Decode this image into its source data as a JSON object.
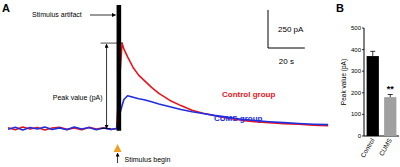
{
  "chart_data": [
    {
      "type": "line",
      "title": "A",
      "tick_labels": false,
      "x": [
        0,
        4,
        8,
        12,
        16,
        20,
        24,
        28,
        32,
        36,
        40,
        44,
        48,
        52,
        56,
        59,
        60,
        62,
        63,
        65,
        68,
        71,
        74,
        78,
        82,
        88,
        94,
        100,
        106,
        112,
        118,
        126,
        134,
        142,
        150,
        158,
        166,
        174
      ],
      "xlim": [
        0,
        175
      ],
      "ylim": [
        -220,
        810
      ],
      "series": [
        {
          "name": "Control group",
          "color": "#e8141b",
          "values": [
            5,
            -8,
            10,
            -4,
            6,
            -10,
            3,
            8,
            -6,
            4,
            -9,
            7,
            -3,
            5,
            -7,
            0,
            200,
            560,
            520,
            470,
            400,
            350,
            315,
            270,
            230,
            184,
            150,
            120,
            100,
            85,
            70,
            55,
            45,
            38,
            32,
            28,
            22,
            18
          ]
        },
        {
          "name": "CUMS group",
          "color": "#1f2ee0",
          "values": [
            -5,
            8,
            -10,
            6,
            -3,
            9,
            -7,
            4,
            -8,
            10,
            -4,
            6,
            -9,
            3,
            -6,
            0,
            60,
            150,
            190,
            215,
            205,
            195,
            188,
            175,
            160,
            142,
            125,
            110,
            98,
            86,
            76,
            62,
            52,
            44,
            38,
            33,
            28,
            25
          ]
        }
      ],
      "artifact_x": [
        59,
        61.5
      ],
      "artifact_y": [
        -15,
        810
      ],
      "scale_bar": {
        "y": 250,
        "y_label": "250 pA",
        "x": 20,
        "x_label": "20 s"
      },
      "annotations": [
        "Stimulus artifact",
        "Peak value (pA)",
        "Stimulus begin"
      ]
    },
    {
      "type": "bar",
      "title": "B",
      "y_label": "Peak value (pA)",
      "categories": [
        "Control",
        "CUMS"
      ],
      "values": [
        370,
        180
      ],
      "errors": [
        22,
        12
      ],
      "colors": [
        "#000000",
        "#a0a0a0"
      ],
      "ylim": [
        0,
        500
      ],
      "yticks": [
        0,
        100,
        200,
        300,
        400,
        500
      ],
      "annotation": "**"
    }
  ]
}
